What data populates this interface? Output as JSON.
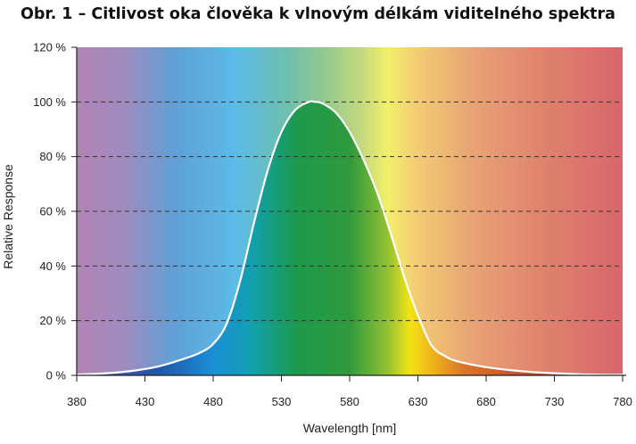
{
  "chart_data": {
    "type": "line",
    "title": "Obr. 1 – Citlivost oka člověka k vlnovým délkám viditelného spektra",
    "xlabel": "Wavelength [nm]",
    "ylabel": "Relative Response",
    "xlim": [
      380,
      780
    ],
    "ylim": [
      0,
      120
    ],
    "x_ticks": [
      "380",
      "430",
      "480",
      "530",
      "580",
      "630",
      "680",
      "730",
      "780"
    ],
    "y_ticks": [
      "0 %",
      "20 %",
      "40 %",
      "60 %",
      "80 %",
      "100 %",
      "120 %"
    ],
    "grid": "horizontal dashed",
    "background": "visible spectrum gradient",
    "curve_color": "#ffffff",
    "series": [
      {
        "x": [
          380,
          400,
          420,
          440,
          460,
          470,
          480,
          490,
          500,
          510,
          520,
          530,
          540,
          550,
          555,
          560,
          570,
          580,
          590,
          600,
          610,
          620,
          630,
          640,
          650,
          660,
          680,
          700,
          720,
          750,
          780
        ],
        "values": [
          0.3,
          0.7,
          1.6,
          3.3,
          6.3,
          8.2,
          11.5,
          19,
          35,
          56,
          75,
          89,
          97,
          100,
          100,
          99.5,
          96,
          89,
          79,
          67,
          52,
          36,
          22,
          11,
          7,
          5,
          3,
          1.8,
          1,
          0.4,
          0.2
        ]
      }
    ]
  }
}
